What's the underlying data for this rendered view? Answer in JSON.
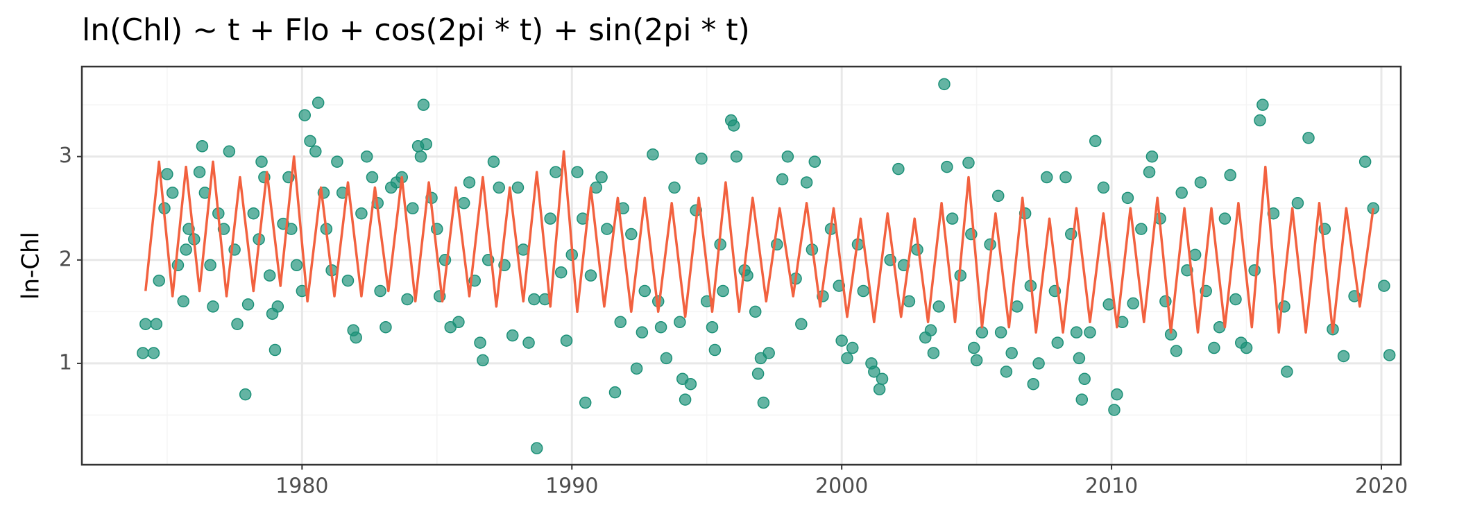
{
  "chart_data": {
    "type": "scatter_line",
    "title": "ln(Chl) ~ t + Flo + cos(2pi * t) + sin(2pi * t)",
    "y_label": "ln-Chl",
    "xlim": [
      1971.84,
      2020.72
    ],
    "ylim": [
      0.02,
      3.87
    ],
    "xticks": [
      1980,
      1990,
      2000,
      2010,
      2020
    ],
    "yticks": [
      1,
      2,
      3
    ],
    "xminor": [
      1975,
      1985,
      1995,
      2005,
      2015
    ],
    "yminor": [
      0.5,
      1.5,
      2.5,
      3.5
    ],
    "grid": true,
    "points": {
      "color": "#1b9077",
      "x": [
        1974.1,
        1974.2,
        1974.5,
        1974.6,
        1974.7,
        1974.9,
        1975.0,
        1975.2,
        1975.4,
        1975.6,
        1975.7,
        1975.8,
        1976.0,
        1976.2,
        1976.3,
        1976.4,
        1976.6,
        1976.7,
        1976.9,
        1977.1,
        1977.3,
        1977.5,
        1977.6,
        1977.9,
        1978.0,
        1978.2,
        1978.4,
        1978.5,
        1978.6,
        1978.8,
        1978.9,
        1979.0,
        1979.1,
        1979.3,
        1979.5,
        1979.6,
        1979.8,
        1980.0,
        1980.1,
        1980.3,
        1980.5,
        1980.6,
        1980.8,
        1980.9,
        1981.1,
        1981.3,
        1981.5,
        1981.7,
        1981.9,
        1982.0,
        1982.2,
        1982.4,
        1982.6,
        1982.8,
        1982.9,
        1983.1,
        1983.3,
        1983.5,
        1983.7,
        1983.9,
        1984.1,
        1984.3,
        1984.4,
        1984.5,
        1984.6,
        1984.8,
        1985.0,
        1985.1,
        1985.3,
        1985.5,
        1985.8,
        1986.0,
        1986.2,
        1986.4,
        1986.6,
        1986.7,
        1986.9,
        1987.1,
        1987.3,
        1987.5,
        1987.8,
        1988.0,
        1988.2,
        1988.4,
        1988.6,
        1988.7,
        1989.0,
        1989.2,
        1989.4,
        1989.6,
        1989.8,
        1990.0,
        1990.2,
        1990.4,
        1990.5,
        1990.7,
        1990.9,
        1991.1,
        1991.3,
        1991.6,
        1991.8,
        1991.9,
        1992.2,
        1992.4,
        1992.6,
        1992.7,
        1993.0,
        1993.2,
        1993.3,
        1993.5,
        1993.8,
        1994.0,
        1994.1,
        1994.2,
        1994.4,
        1994.6,
        1994.8,
        1995.0,
        1995.2,
        1995.3,
        1995.5,
        1995.6,
        1995.9,
        1996.0,
        1996.1,
        1996.4,
        1996.5,
        1996.8,
        1996.9,
        1997.0,
        1997.1,
        1997.3,
        1997.6,
        1997.8,
        1998.0,
        1998.3,
        1998.5,
        1998.7,
        1998.9,
        1999.0,
        1999.3,
        1999.6,
        1999.9,
        2000.0,
        2000.2,
        2000.4,
        2000.6,
        2000.8,
        2001.1,
        2001.2,
        2001.4,
        2001.5,
        2001.8,
        2002.1,
        2002.3,
        2002.5,
        2002.8,
        2003.1,
        2003.3,
        2003.4,
        2003.6,
        2003.8,
        2003.9,
        2004.1,
        2004.4,
        2004.7,
        2004.8,
        2004.9,
        2005.0,
        2005.2,
        2005.5,
        2005.8,
        2005.9,
        2006.1,
        2006.3,
        2006.5,
        2006.8,
        2007.0,
        2007.1,
        2007.3,
        2007.6,
        2007.9,
        2008.0,
        2008.3,
        2008.5,
        2008.7,
        2008.8,
        2008.9,
        2009.0,
        2009.2,
        2009.4,
        2009.7,
        2009.9,
        2010.1,
        2010.2,
        2010.4,
        2010.6,
        2010.8,
        2011.1,
        2011.4,
        2011.5,
        2011.8,
        2012.0,
        2012.2,
        2012.4,
        2012.6,
        2012.8,
        2013.1,
        2013.3,
        2013.5,
        2013.8,
        2014.0,
        2014.2,
        2014.4,
        2014.6,
        2014.8,
        2015.0,
        2015.3,
        2015.5,
        2015.6,
        2016.0,
        2016.4,
        2016.5,
        2016.9,
        2017.3,
        2017.9,
        2018.2,
        2018.6,
        2019.0,
        2019.4,
        2019.7,
        2020.1,
        2020.3
      ],
      "values": [
        1.1,
        1.38,
        1.1,
        1.38,
        1.8,
        2.5,
        2.83,
        2.65,
        1.95,
        1.6,
        2.1,
        2.3,
        2.2,
        2.85,
        3.1,
        2.65,
        1.95,
        1.55,
        2.45,
        2.3,
        3.05,
        2.1,
        1.38,
        0.7,
        1.57,
        2.45,
        2.2,
        2.95,
        2.8,
        1.85,
        1.48,
        1.13,
        1.55,
        2.35,
        2.8,
        2.3,
        1.95,
        1.7,
        3.4,
        3.15,
        3.05,
        3.52,
        2.65,
        2.3,
        1.9,
        2.95,
        2.65,
        1.8,
        1.32,
        1.25,
        2.45,
        3.0,
        2.8,
        2.55,
        1.7,
        1.35,
        2.7,
        2.75,
        2.8,
        1.62,
        2.5,
        3.1,
        3.0,
        3.5,
        3.12,
        2.6,
        2.3,
        1.65,
        2.0,
        1.35,
        1.4,
        2.55,
        2.75,
        1.8,
        1.2,
        1.03,
        2.0,
        2.95,
        2.7,
        1.95,
        1.27,
        2.7,
        2.1,
        1.2,
        1.62,
        0.18,
        1.62,
        2.4,
        2.85,
        1.88,
        1.22,
        2.05,
        2.85,
        2.4,
        0.62,
        1.85,
        2.7,
        2.8,
        2.3,
        0.72,
        1.4,
        2.5,
        2.25,
        0.95,
        1.3,
        1.7,
        3.02,
        1.6,
        1.35,
        1.05,
        2.7,
        1.4,
        0.85,
        0.65,
        0.8,
        2.48,
        2.98,
        1.6,
        1.35,
        1.13,
        2.15,
        1.7,
        3.35,
        3.3,
        3.0,
        1.9,
        1.85,
        1.5,
        0.9,
        1.05,
        0.62,
        1.1,
        2.15,
        2.78,
        3.0,
        1.82,
        1.38,
        2.75,
        2.1,
        2.95,
        1.65,
        2.3,
        1.75,
        1.22,
        1.05,
        1.15,
        2.15,
        1.7,
        1.0,
        0.92,
        0.75,
        0.85,
        2.0,
        2.88,
        1.95,
        1.6,
        2.1,
        1.25,
        1.32,
        1.1,
        1.55,
        3.7,
        2.9,
        2.4,
        1.85,
        2.94,
        2.25,
        1.15,
        1.03,
        1.3,
        2.15,
        2.62,
        1.3,
        0.92,
        1.1,
        1.55,
        2.45,
        1.75,
        0.8,
        1.0,
        2.8,
        1.7,
        1.2,
        2.8,
        2.25,
        1.3,
        1.05,
        0.65,
        0.85,
        1.3,
        3.15,
        2.7,
        1.57,
        0.55,
        0.7,
        1.4,
        2.6,
        1.58,
        2.3,
        2.85,
        3.0,
        2.4,
        1.6,
        1.28,
        1.12,
        2.65,
        1.9,
        2.05,
        2.75,
        1.7,
        1.15,
        1.35,
        2.4,
        2.82,
        1.62,
        1.2,
        1.15,
        1.9,
        3.35,
        3.5,
        2.45,
        1.55,
        0.92,
        2.55,
        3.18,
        2.3,
        1.33,
        1.07,
        1.65,
        2.95,
        2.5,
        1.75,
        1.08
      ]
    },
    "line": {
      "color": "#f2613f",
      "x": [
        1974.2,
        1974.7,
        1975.2,
        1975.7,
        1976.2,
        1976.7,
        1977.2,
        1977.7,
        1978.2,
        1978.7,
        1979.2,
        1979.7,
        1980.2,
        1980.7,
        1981.2,
        1981.7,
        1982.2,
        1982.7,
        1983.2,
        1983.7,
        1984.2,
        1984.7,
        1985.2,
        1985.7,
        1986.2,
        1986.7,
        1987.2,
        1987.7,
        1988.2,
        1988.7,
        1989.2,
        1989.7,
        1990.2,
        1990.7,
        1991.2,
        1991.7,
        1992.2,
        1992.7,
        1993.2,
        1993.7,
        1994.2,
        1994.7,
        1995.2,
        1995.7,
        1996.2,
        1996.7,
        1997.2,
        1997.7,
        1998.2,
        1998.7,
        1999.2,
        1999.7,
        2000.2,
        2000.7,
        2001.2,
        2001.7,
        2002.2,
        2002.7,
        2003.2,
        2003.7,
        2004.2,
        2004.7,
        2005.2,
        2005.7,
        2006.2,
        2006.7,
        2007.2,
        2007.7,
        2008.2,
        2008.7,
        2009.2,
        2009.7,
        2010.2,
        2010.7,
        2011.2,
        2011.7,
        2012.2,
        2012.7,
        2013.2,
        2013.7,
        2014.2,
        2014.7,
        2015.2,
        2015.7,
        2016.2,
        2016.7,
        2017.2,
        2017.7,
        2018.2,
        2018.7,
        2019.2,
        2019.7
      ],
      "values": [
        1.7,
        2.95,
        1.65,
        2.9,
        1.7,
        2.95,
        1.65,
        2.8,
        1.7,
        2.85,
        1.75,
        3.0,
        1.6,
        2.7,
        1.65,
        2.75,
        1.65,
        2.7,
        1.7,
        2.8,
        1.6,
        2.75,
        1.6,
        2.7,
        1.65,
        2.8,
        1.55,
        2.7,
        1.6,
        2.85,
        1.55,
        3.05,
        1.5,
        2.7,
        1.55,
        2.6,
        1.5,
        2.6,
        1.5,
        2.55,
        1.45,
        2.6,
        1.5,
        2.75,
        1.5,
        2.6,
        1.6,
        2.5,
        1.65,
        2.55,
        1.55,
        2.5,
        1.45,
        2.4,
        1.4,
        2.45,
        1.45,
        2.4,
        1.4,
        2.55,
        1.4,
        2.8,
        1.35,
        2.45,
        1.35,
        2.6,
        1.3,
        2.4,
        1.3,
        2.5,
        1.4,
        2.45,
        1.35,
        2.5,
        1.4,
        2.6,
        1.3,
        2.5,
        1.3,
        2.5,
        1.35,
        2.55,
        1.35,
        2.9,
        1.3,
        2.5,
        1.3,
        2.55,
        1.3,
        2.5,
        1.55,
        2.5
      ]
    }
  }
}
